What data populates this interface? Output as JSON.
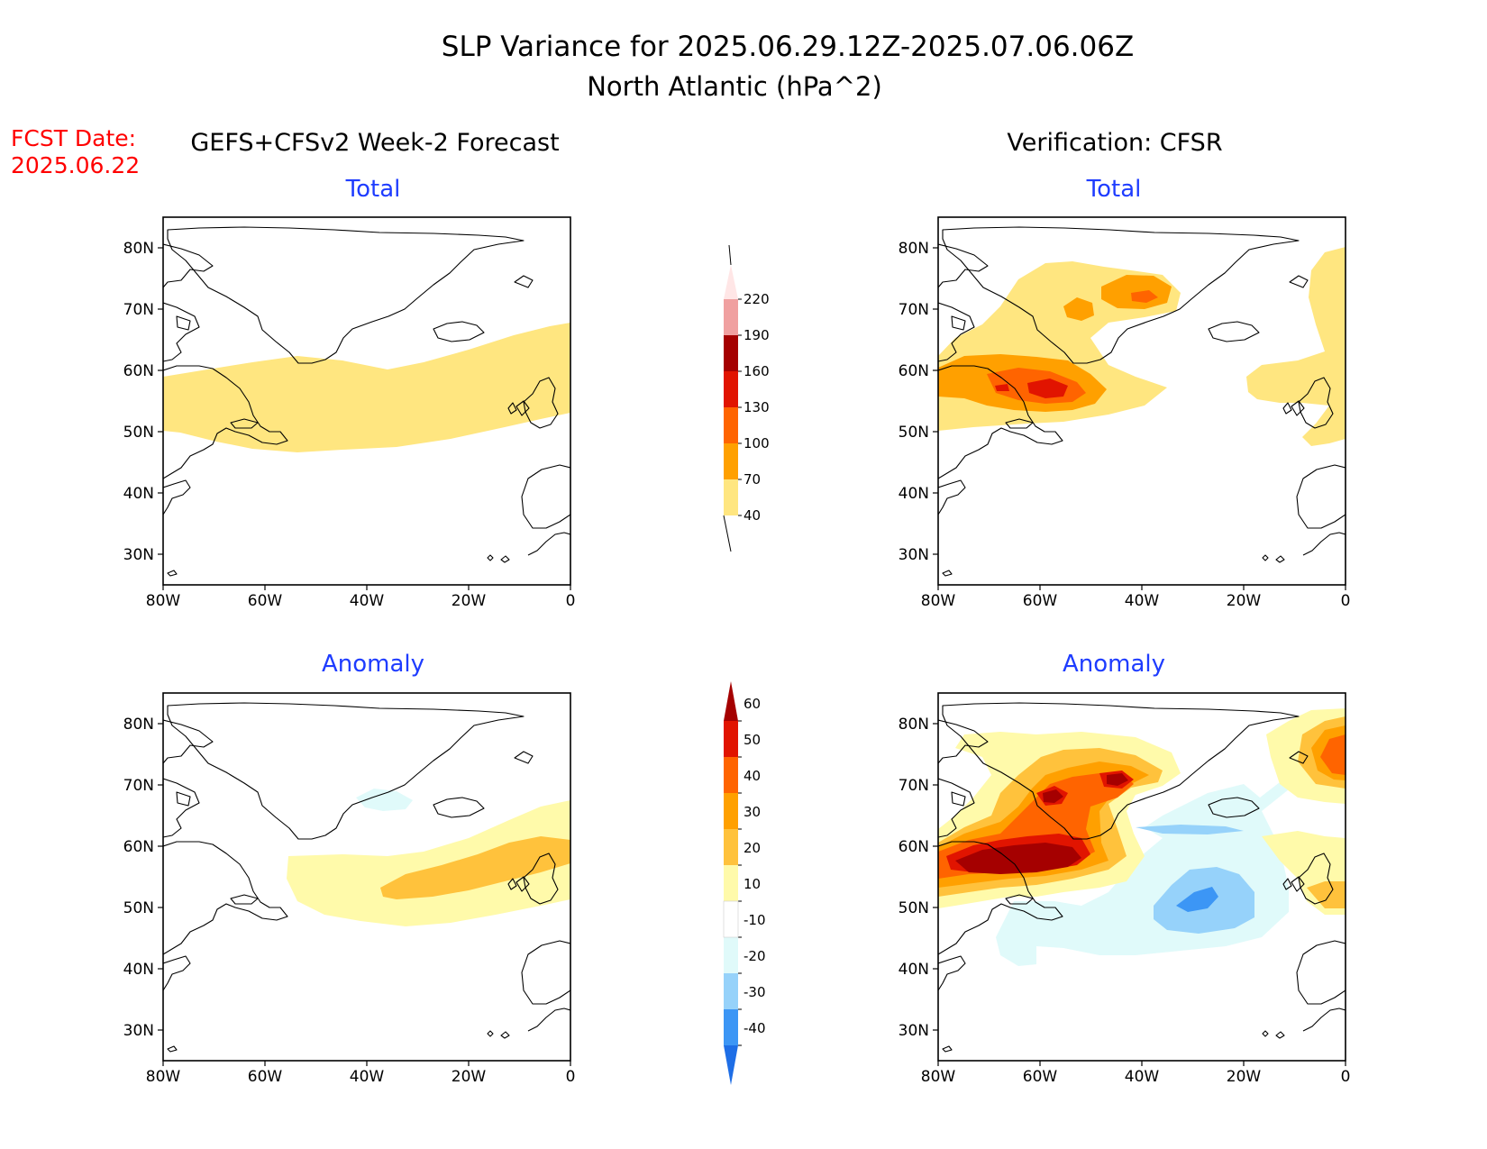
{
  "title": {
    "line1": "SLP Variance for 2025.06.29.12Z-2025.07.06.06Z",
    "line2": "North Atlantic (hPa^2)"
  },
  "fcst": {
    "line1": "FCST Date:",
    "line2": "2025.06.22"
  },
  "columns": {
    "left": "GEFS+CFSv2 Week-2 Forecast",
    "right": "Verification: CFSR"
  },
  "panel_titles": {
    "total": "Total",
    "anomaly": "Anomaly"
  },
  "axes": {
    "lat_labels": [
      "80N",
      "70N",
      "60N",
      "50N",
      "40N",
      "30N"
    ],
    "lat_values": [
      80,
      70,
      60,
      50,
      40,
      30
    ],
    "lon_labels": [
      "80W",
      "60W",
      "40W",
      "20W",
      "0"
    ],
    "lon_values": [
      -80,
      -60,
      -40,
      -20,
      0
    ],
    "lat_range": [
      25,
      85
    ],
    "lon_range": [
      -80,
      0
    ]
  },
  "colorbars": {
    "total": {
      "levels": [
        "40",
        "70",
        "100",
        "130",
        "160",
        "190",
        "220"
      ],
      "colors": [
        "#ffe680",
        "#ffa000",
        "#ff6400",
        "#e11400",
        "#a50000",
        "#f0a0a0",
        "#ffe6e6"
      ]
    },
    "anomaly": {
      "levels": [
        "60",
        "50",
        "40",
        "30",
        "20",
        "10",
        "-10",
        "-20",
        "-30",
        "-40"
      ],
      "colors": [
        "#a50000",
        "#e11400",
        "#ff6400",
        "#ffa000",
        "#ffc23c",
        "#fffaaa",
        "#ffffff",
        "#e0fafa",
        "#96d2fa",
        "#3c96f5",
        "#1e6ee6"
      ]
    }
  },
  "colors": {
    "title_text": "#000000",
    "fcst_text": "#ff0000",
    "panel_title_text": "#1e3cff",
    "coastline": "#000000"
  }
}
